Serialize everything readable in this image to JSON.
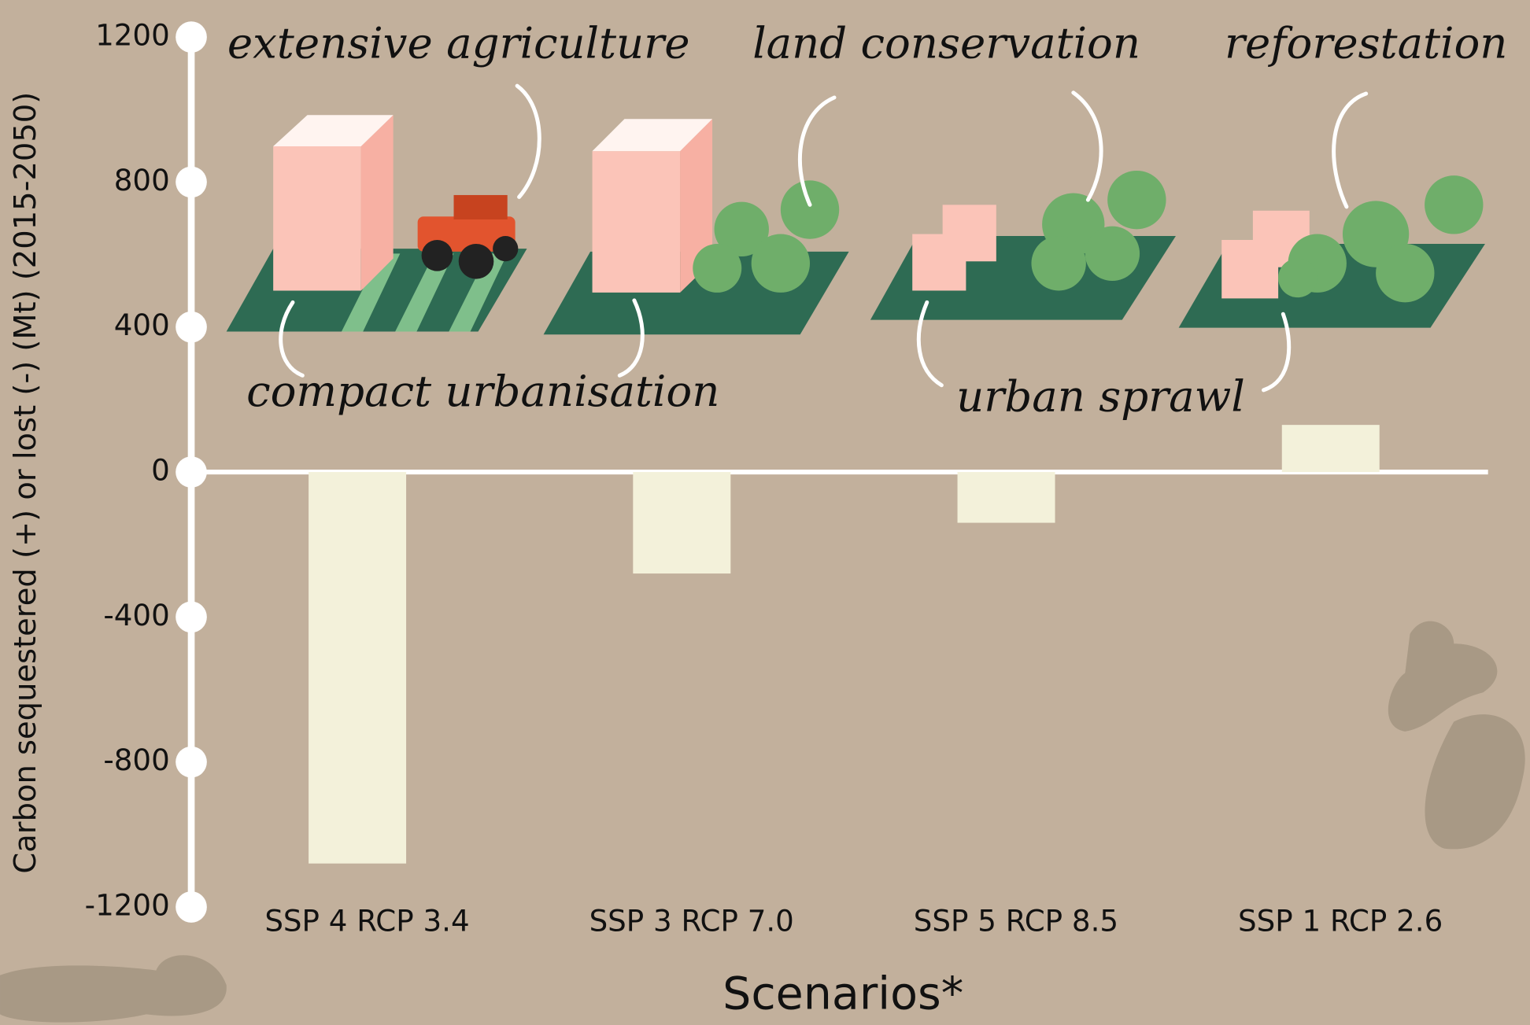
{
  "chart_data": {
    "type": "bar",
    "y_label": "Carbon sequestered (+) or lost (-) (Mt) (2015-2050)",
    "x_label": "Scenarios*",
    "categories": [
      "SSP 4 RCP 3.4",
      "SSP 3 RCP 7.0",
      "SSP 5 RCP 8.5",
      "SSP 1 RCP 2.6"
    ],
    "values": [
      -1080,
      -280,
      -140,
      130
    ],
    "color": "#f3f1da",
    "ylim": [
      -1200,
      1200
    ],
    "yticks": [
      1200,
      800,
      400,
      0,
      -400,
      -800,
      -1200
    ],
    "annotations": [
      "extensive agriculture",
      "land conservation",
      "reforestation",
      "compact urbanisation",
      "urban sprawl"
    ]
  }
}
